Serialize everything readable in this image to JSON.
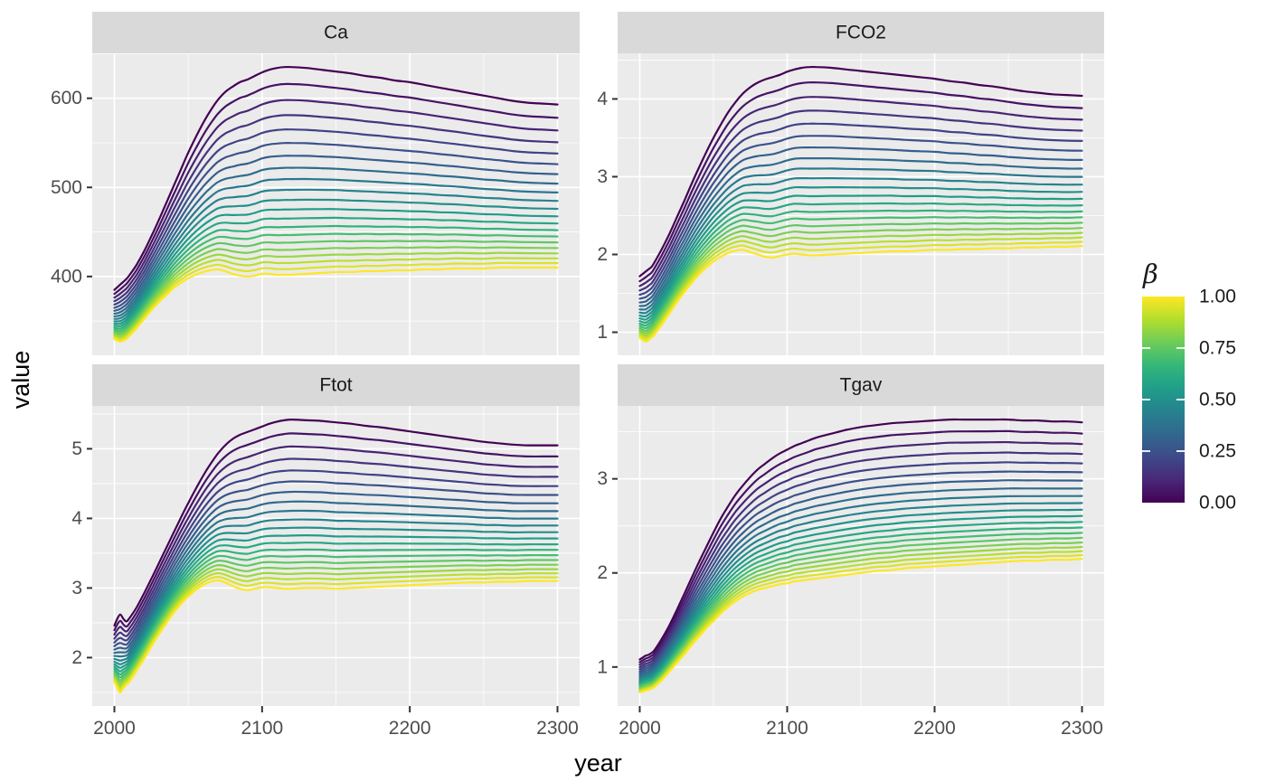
{
  "figure": {
    "background": "#FFFFFF",
    "description": "Faceted line chart of Hector model outputs vs year for 21 values of beta"
  },
  "chart_data": {
    "type": "line",
    "title": "",
    "xlabel": "year",
    "ylabel": "value",
    "facet_titles": [
      "Ca",
      "FCO2",
      "Ftot",
      "Tgav"
    ],
    "x": [
      2000,
      2002,
      2004,
      2006,
      2008,
      2010,
      2015,
      2020,
      2025,
      2030,
      2035,
      2040,
      2045,
      2050,
      2055,
      2060,
      2065,
      2070,
      2075,
      2080,
      2085,
      2090,
      2095,
      2100,
      2105,
      2110,
      2115,
      2120,
      2130,
      2140,
      2150,
      2160,
      2170,
      2180,
      2190,
      2200,
      2210,
      2220,
      2230,
      2240,
      2250,
      2260,
      2270,
      2280,
      2290,
      2300
    ],
    "xticks": [
      2000,
      2100,
      2200,
      2300
    ],
    "xlim": [
      1985,
      2315
    ],
    "grid": "major-and-minor",
    "legend_position": "right",
    "beta_values": [
      0,
      0.05,
      0.1,
      0.15,
      0.2,
      0.25,
      0.3,
      0.35,
      0.4,
      0.45,
      0.5,
      0.55,
      0.6,
      0.65,
      0.7,
      0.75,
      0.8,
      0.85,
      0.9,
      0.95,
      1
    ],
    "series_rule": "value(beta) = beta1 + (beta0 - beta1) * (exp(k*(1-beta)) - 1)/(exp(k) - 1); lines colored by viridis(beta)",
    "interp_k": 1.15,
    "facets": [
      {
        "name": "Ca",
        "yticks": [
          400,
          500,
          600
        ],
        "beta0": [
          385,
          388,
          391,
          394,
          397,
          401,
          413,
          428,
          445,
          463,
          482,
          501,
          520,
          539,
          556,
          572,
          586,
          598,
          607,
          613,
          618,
          621,
          625,
          629,
          632,
          634,
          635,
          635,
          634,
          632,
          630,
          628,
          625,
          623,
          620,
          618,
          615,
          612,
          609,
          606,
          603,
          600,
          597,
          595,
          594,
          593
        ],
        "beta1": [
          330,
          328,
          327,
          328,
          330,
          333,
          342,
          352,
          362,
          371,
          379,
          387,
          393,
          398,
          402,
          405,
          407,
          408,
          406,
          403,
          401,
          400,
          401,
          403,
          403,
          402,
          402,
          402,
          403,
          404,
          405,
          405,
          406,
          406,
          407,
          407,
          408,
          408,
          409,
          409,
          409,
          410,
          410,
          410,
          410,
          410
        ]
      },
      {
        "name": "FCO2",
        "yticks": [
          1,
          2,
          3,
          4
        ],
        "beta0": [
          1.72,
          1.75,
          1.78,
          1.81,
          1.84,
          1.9,
          2.07,
          2.26,
          2.47,
          2.68,
          2.9,
          3.11,
          3.31,
          3.5,
          3.67,
          3.83,
          3.96,
          4.07,
          4.15,
          4.21,
          4.25,
          4.28,
          4.31,
          4.35,
          4.38,
          4.4,
          4.41,
          4.41,
          4.4,
          4.38,
          4.36,
          4.34,
          4.32,
          4.3,
          4.28,
          4.26,
          4.23,
          4.21,
          4.18,
          4.16,
          4.13,
          4.1,
          4.08,
          4.06,
          4.05,
          4.04
        ],
        "beta1": [
          0.93,
          0.9,
          0.88,
          0.9,
          0.93,
          0.97,
          1.1,
          1.24,
          1.38,
          1.51,
          1.63,
          1.74,
          1.83,
          1.91,
          1.97,
          2.02,
          2.05,
          2.06,
          2.03,
          2.0,
          1.97,
          1.96,
          1.98,
          2.0,
          2.01,
          2.0,
          1.99,
          1.99,
          2.0,
          2.01,
          2.02,
          2.03,
          2.04,
          2.04,
          2.05,
          2.06,
          2.06,
          2.07,
          2.07,
          2.08,
          2.08,
          2.09,
          2.09,
          2.1,
          2.1,
          2.11
        ]
      },
      {
        "name": "Ftot",
        "yticks": [
          2,
          3,
          4,
          5
        ],
        "beta0": [
          2.46,
          2.56,
          2.62,
          2.56,
          2.52,
          2.56,
          2.72,
          2.92,
          3.13,
          3.35,
          3.57,
          3.79,
          4.01,
          4.22,
          4.42,
          4.61,
          4.78,
          4.93,
          5.05,
          5.14,
          5.2,
          5.24,
          5.28,
          5.32,
          5.36,
          5.39,
          5.41,
          5.42,
          5.41,
          5.4,
          5.38,
          5.36,
          5.33,
          5.31,
          5.28,
          5.25,
          5.22,
          5.19,
          5.16,
          5.13,
          5.1,
          5.08,
          5.06,
          5.05,
          5.05,
          5.05
        ],
        "beta1": [
          1.65,
          1.56,
          1.5,
          1.56,
          1.61,
          1.65,
          1.81,
          1.98,
          2.16,
          2.33,
          2.49,
          2.64,
          2.77,
          2.88,
          2.97,
          3.04,
          3.09,
          3.11,
          3.08,
          3.03,
          2.99,
          2.97,
          2.99,
          3.01,
          3.01,
          3.0,
          2.99,
          2.99,
          3.0,
          3.0,
          2.99,
          3.0,
          3.01,
          3.02,
          3.03,
          3.04,
          3.05,
          3.06,
          3.07,
          3.08,
          3.08,
          3.09,
          3.09,
          3.1,
          3.1,
          3.1
        ]
      },
      {
        "name": "Tgav",
        "yticks": [
          1,
          2,
          3
        ],
        "beta0": [
          1.08,
          1.1,
          1.12,
          1.13,
          1.15,
          1.18,
          1.3,
          1.44,
          1.6,
          1.77,
          1.94,
          2.11,
          2.27,
          2.43,
          2.58,
          2.71,
          2.83,
          2.93,
          3.02,
          3.1,
          3.16,
          3.22,
          3.27,
          3.31,
          3.35,
          3.38,
          3.41,
          3.44,
          3.48,
          3.52,
          3.55,
          3.57,
          3.59,
          3.6,
          3.61,
          3.62,
          3.63,
          3.63,
          3.63,
          3.63,
          3.63,
          3.62,
          3.62,
          3.61,
          3.61,
          3.6
        ],
        "beta1": [
          0.73,
          0.74,
          0.75,
          0.76,
          0.77,
          0.79,
          0.86,
          0.95,
          1.04,
          1.13,
          1.23,
          1.32,
          1.41,
          1.49,
          1.57,
          1.64,
          1.7,
          1.75,
          1.79,
          1.82,
          1.84,
          1.86,
          1.88,
          1.89,
          1.91,
          1.92,
          1.93,
          1.94,
          1.96,
          1.98,
          2.0,
          2.02,
          2.03,
          2.05,
          2.06,
          2.07,
          2.08,
          2.09,
          2.1,
          2.11,
          2.12,
          2.13,
          2.13,
          2.14,
          2.14,
          2.15
        ]
      }
    ],
    "legend": {
      "title": "β",
      "tick_values": [
        1.0,
        0.75,
        0.5,
        0.25,
        0.0
      ],
      "tick_labels": [
        "1.00",
        "0.75",
        "0.50",
        "0.25",
        "0.00"
      ]
    },
    "colors": {
      "viridis": [
        "#440154",
        "#482878",
        "#3E4A89",
        "#31688E",
        "#26828E",
        "#1F9E89",
        "#35B779",
        "#6DCD59",
        "#B4DE2C",
        "#FDE725"
      ],
      "panel_bg": "#EBEBEB",
      "strip_bg": "#D9D9D9",
      "strip_text": "#1A1A1A",
      "grid": "#FFFFFF",
      "axis_text": "#4D4D4D",
      "axis_title": "#000000",
      "legend_text": "#1A1A1A",
      "tick_mark": "#333333",
      "background": "#FFFFFF"
    }
  }
}
